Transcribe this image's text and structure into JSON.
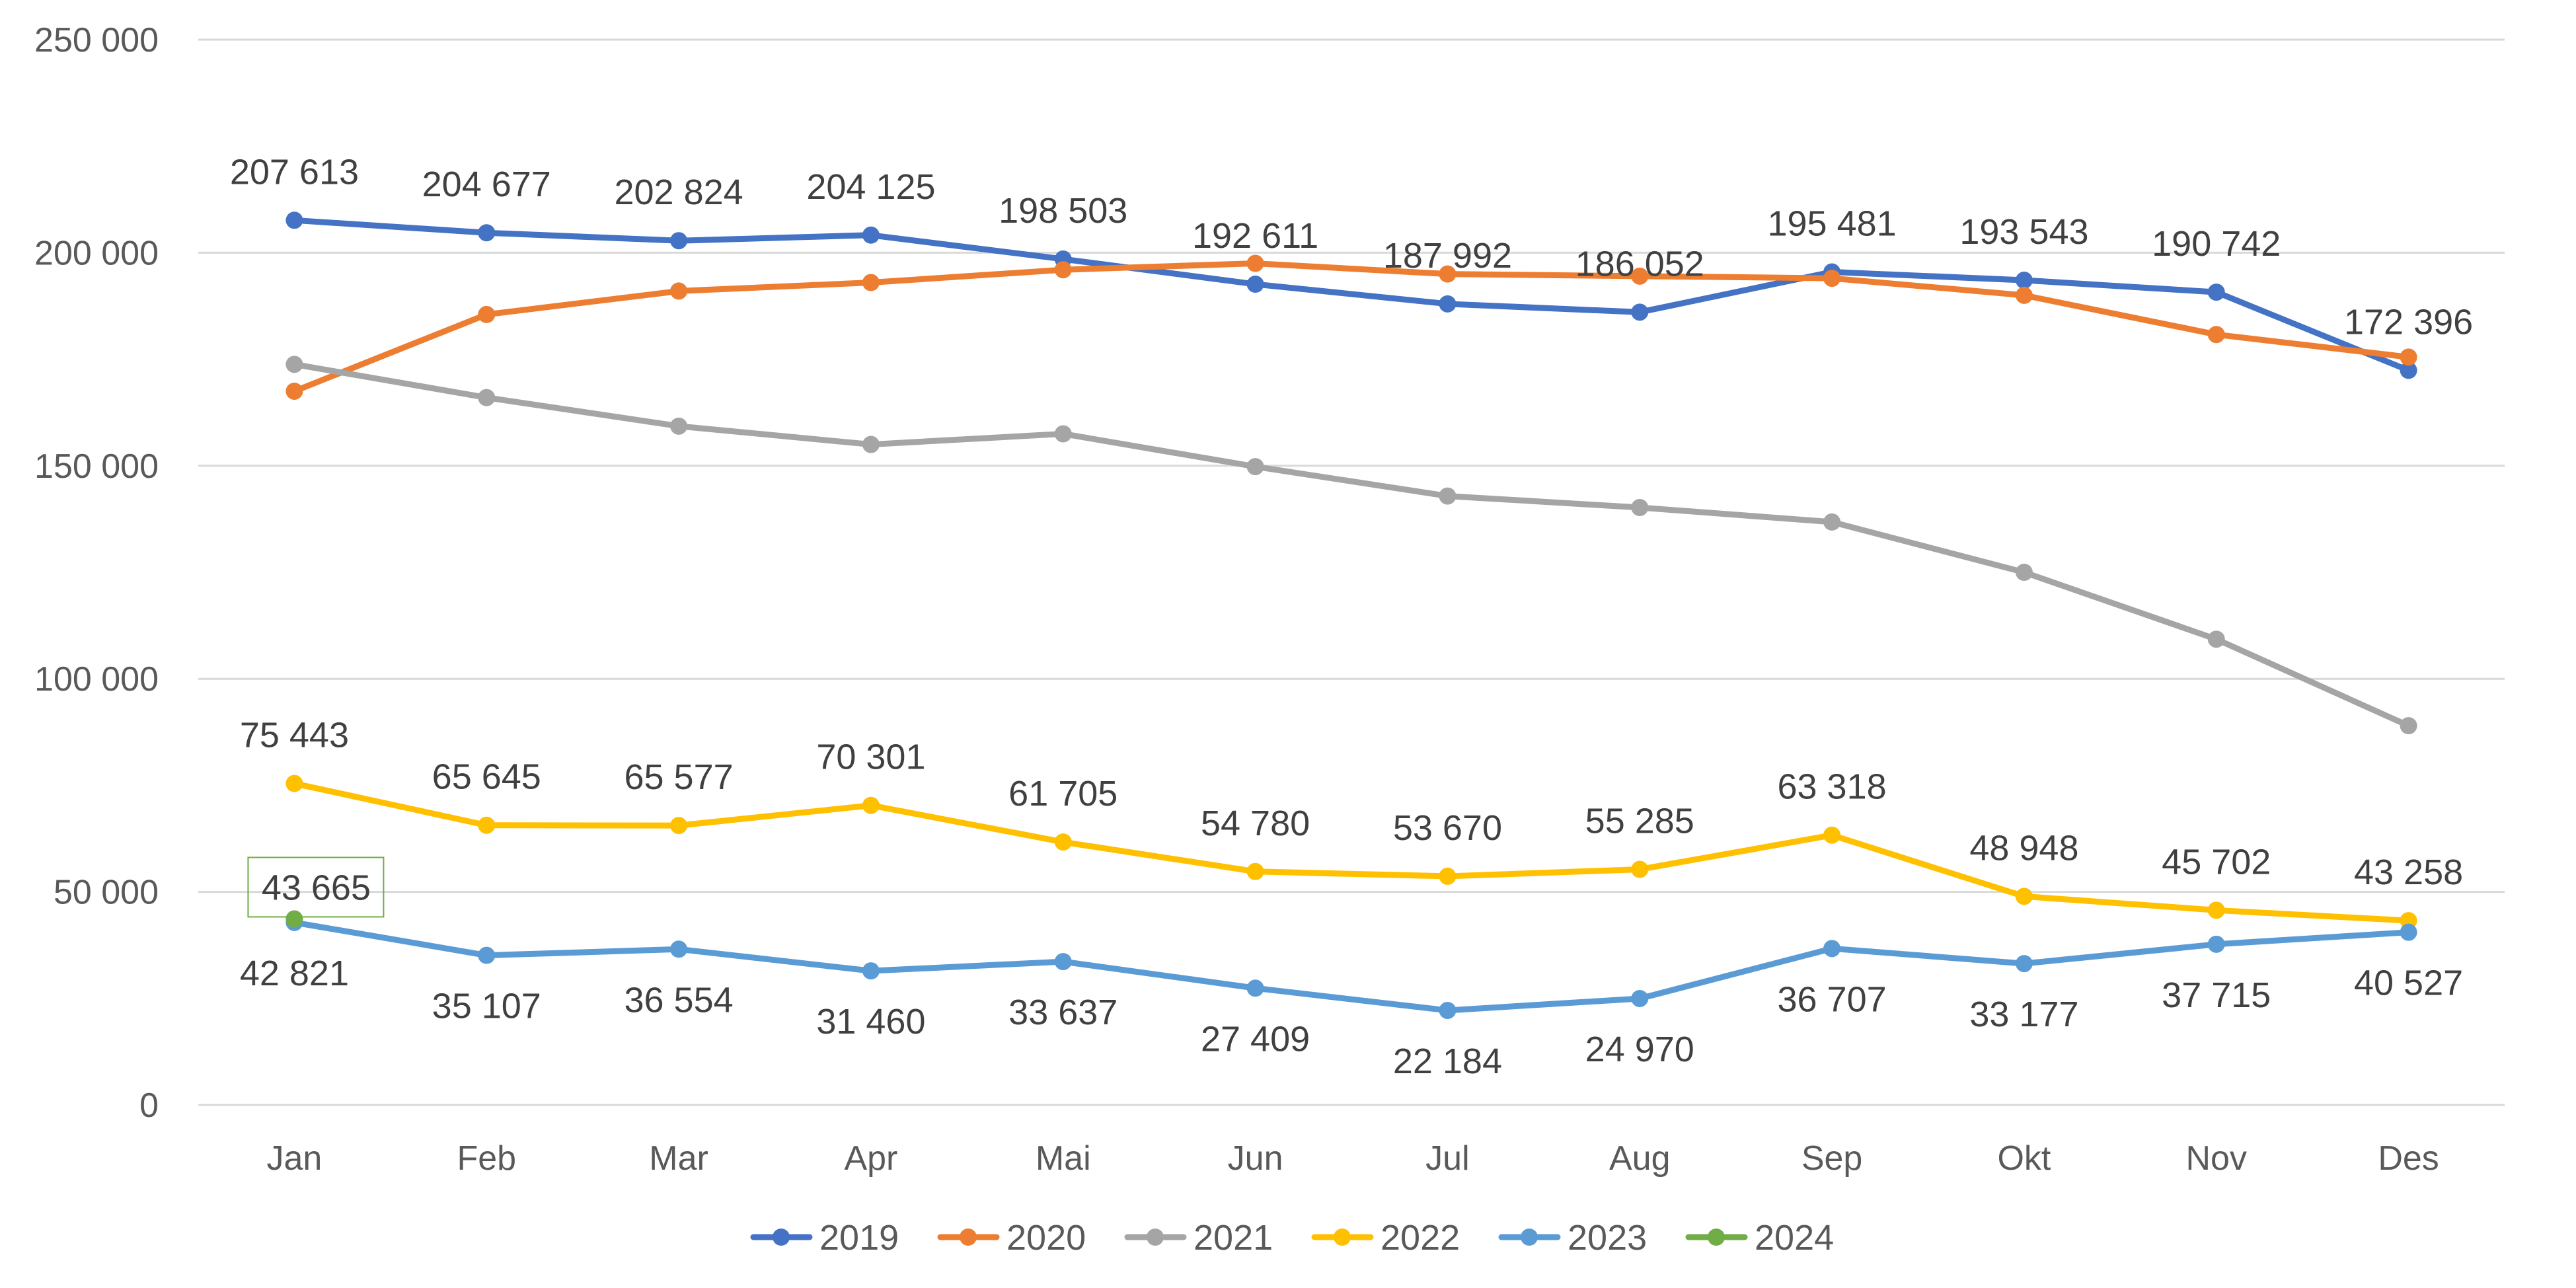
{
  "chart_data": {
    "type": "line",
    "title": "",
    "xlabel": "",
    "ylabel": "",
    "ylim": [
      0,
      250000
    ],
    "yticks": [
      0,
      50000,
      100000,
      150000,
      200000,
      250000
    ],
    "ytick_labels": [
      "0",
      "50 000",
      "100 000",
      "150 000",
      "200 000",
      "250 000"
    ],
    "grid": true,
    "legend_position": "bottom",
    "categories": [
      "Jan",
      "Feb",
      "Mar",
      "Apr",
      "Mai",
      "Jun",
      "Jul",
      "Aug",
      "Sep",
      "Okt",
      "Nov",
      "Des"
    ],
    "series": [
      {
        "name": "2019",
        "color": "#4472C4",
        "labels": true,
        "label_position": "above",
        "values": [
          207613,
          204677,
          202824,
          204125,
          198503,
          192611,
          187992,
          186052,
          195481,
          193543,
          190742,
          172396
        ],
        "value_labels": [
          "207 613",
          "204 677",
          "202 824",
          "204 125",
          "198 503",
          "192 611",
          "187 992",
          "186 052",
          "195 481",
          "193 543",
          "190 742",
          "172 396"
        ]
      },
      {
        "name": "2020",
        "color": "#ED7D31",
        "labels": false,
        "values": [
          167500,
          185500,
          191000,
          193000,
          196000,
          197500,
          195000,
          194500,
          194000,
          190000,
          180800,
          175500
        ]
      },
      {
        "name": "2021",
        "color": "#A5A5A5",
        "labels": false,
        "values": [
          173800,
          166000,
          159300,
          155000,
          157500,
          149800,
          142900,
          140200,
          136800,
          125000,
          109300,
          89000
        ]
      },
      {
        "name": "2022",
        "color": "#FFC000",
        "labels": true,
        "label_position": "above",
        "values": [
          75443,
          65645,
          65577,
          70301,
          61705,
          54780,
          53670,
          55285,
          63318,
          48948,
          45702,
          43258
        ],
        "value_labels": [
          "75 443",
          "65 645",
          "65 577",
          "70 301",
          "61 705",
          "54 780",
          "53 670",
          "55 285",
          "63 318",
          "48 948",
          "45 702",
          "43 258"
        ]
      },
      {
        "name": "2023",
        "color": "#5B9BD5",
        "labels": true,
        "label_position": "below",
        "values": [
          42821,
          35107,
          36554,
          31460,
          33637,
          27409,
          22184,
          24970,
          36707,
          33177,
          37715,
          40527
        ],
        "value_labels": [
          "42 821",
          "35 107",
          "36 554",
          "31 460",
          "33 637",
          "27 409",
          "22 184",
          "24 970",
          "36 707",
          "33 177",
          "37 715",
          "40 527"
        ]
      },
      {
        "name": "2024",
        "color": "#70AD47",
        "labels": true,
        "label_position": "boxed",
        "values": [
          43665,
          null,
          null,
          null,
          null,
          null,
          null,
          null,
          null,
          null,
          null,
          null
        ],
        "value_labels": [
          "43 665"
        ]
      }
    ]
  }
}
